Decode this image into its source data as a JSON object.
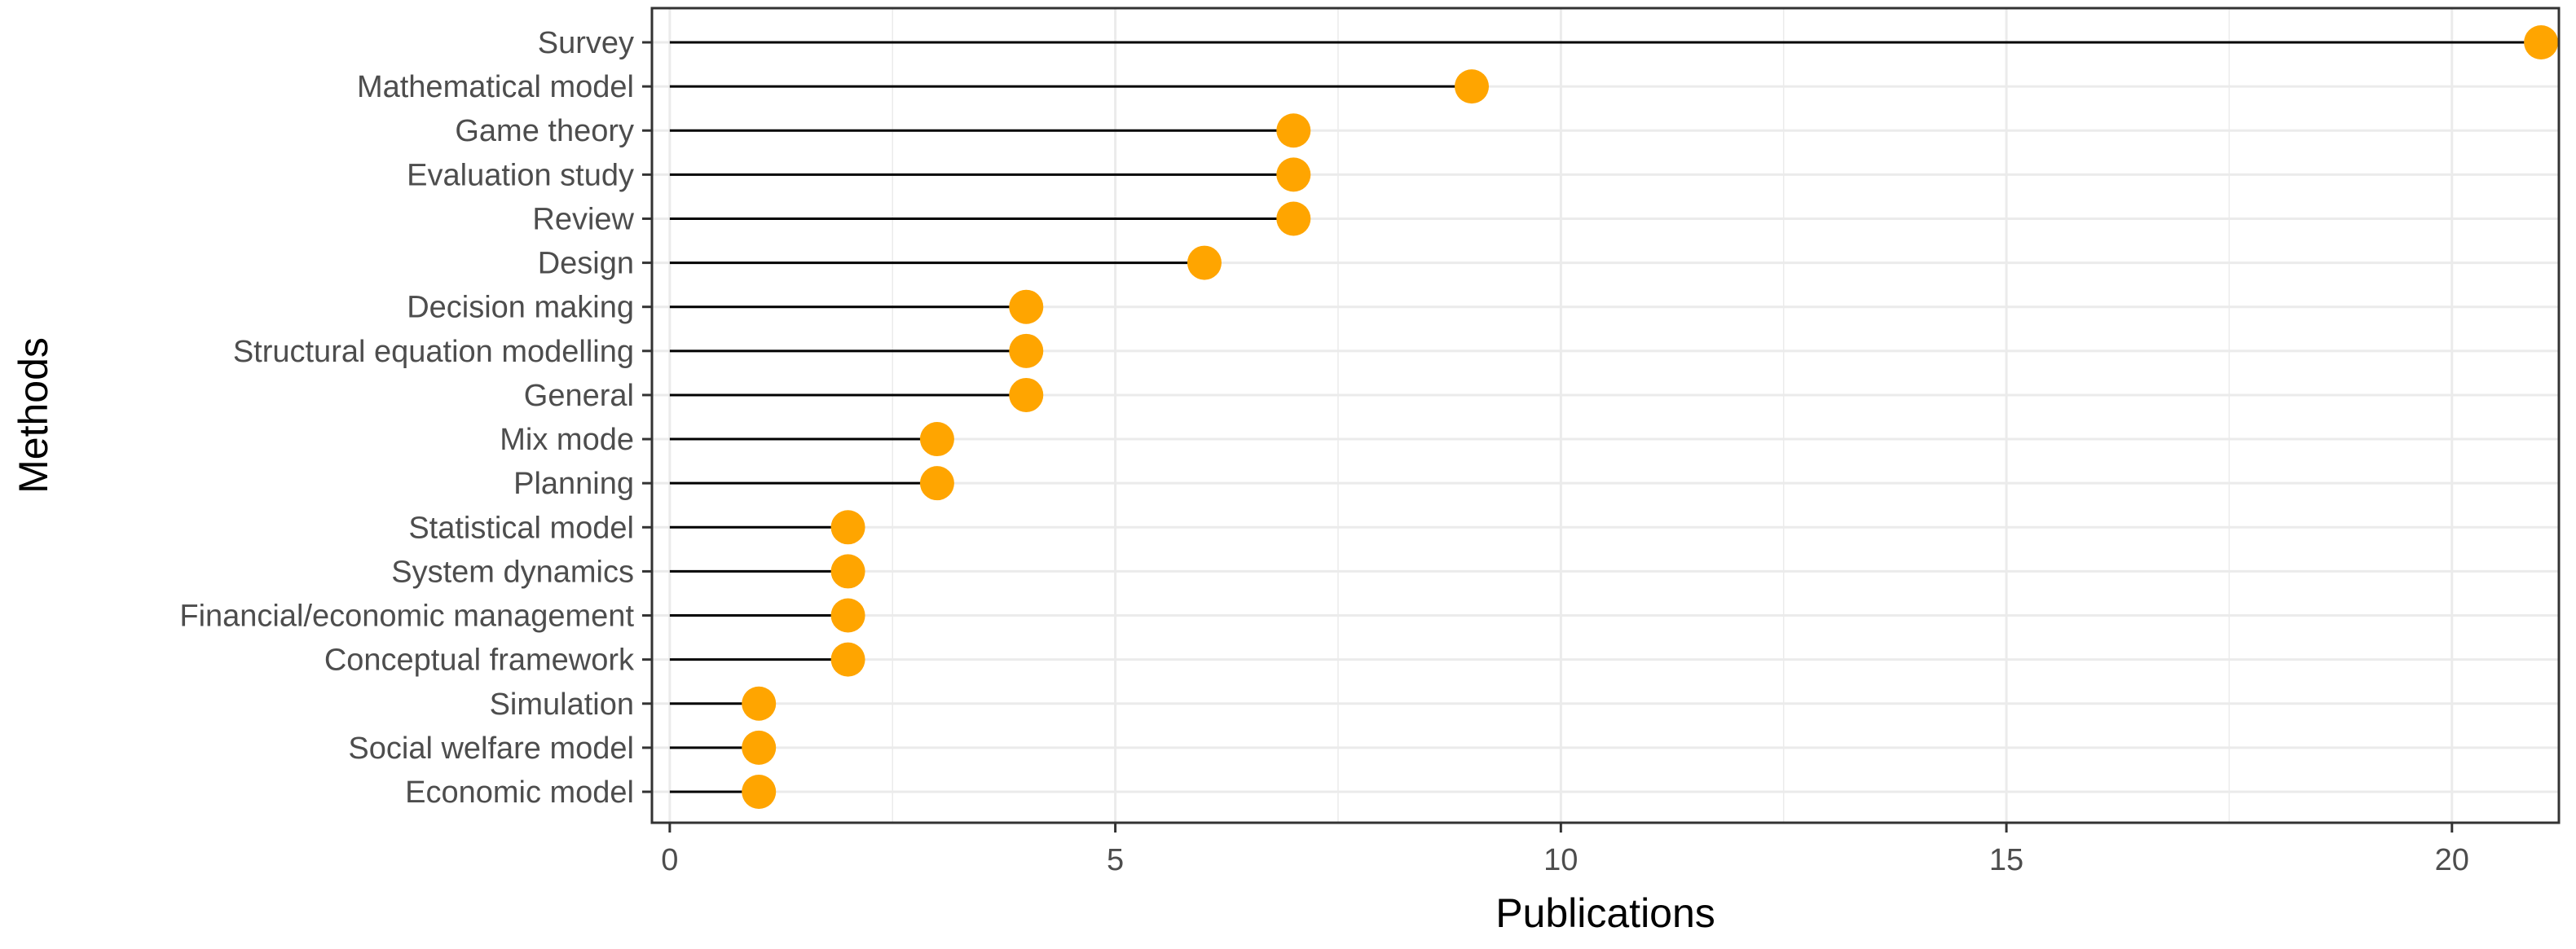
{
  "chart_data": {
    "type": "lollipop",
    "xlabel": "Publications",
    "ylabel": "Methods",
    "xlim": [
      -0.2,
      21.2
    ],
    "x_ticks": [
      0,
      5,
      10,
      15,
      20
    ],
    "x_tick_labels": [
      "0",
      "5",
      "10",
      "15",
      "20"
    ],
    "grid": true,
    "categories": [
      "Survey",
      "Mathematical model",
      "Game theory",
      "Evaluation study",
      "Review",
      "Design",
      "Decision making",
      "Structural equation modelling",
      "General",
      "Mix mode",
      "Planning",
      "Statistical model",
      "System dynamics",
      "Financial/economic management",
      "Conceptual framework",
      "Simulation",
      "Social welfare model",
      "Economic model"
    ],
    "values": [
      21,
      9,
      7,
      7,
      7,
      6,
      4,
      4,
      4,
      3,
      3,
      2,
      2,
      2,
      2,
      1,
      1,
      1
    ],
    "colors": {
      "point": "#FFA500",
      "stem": "#000000",
      "grid": "#ebebeb",
      "border": "#333333",
      "tick_text": "#4d4d4d"
    }
  }
}
